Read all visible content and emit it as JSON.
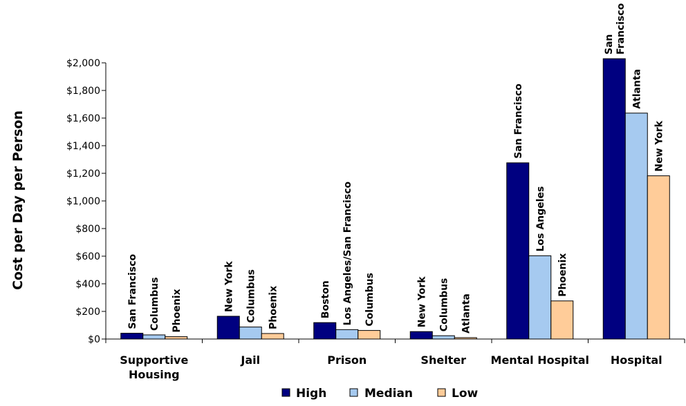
{
  "chart_data": {
    "type": "bar",
    "title": "",
    "xlabel": "",
    "ylabel": "Cost per Day per Person",
    "ylim": [
      0,
      2000
    ],
    "yticks": [
      "$0",
      "$200",
      "$400",
      "$600",
      "$800",
      "$1,000",
      "$1,200",
      "$1,400",
      "$1,600",
      "$1,800",
      "$2,000"
    ],
    "grid": false,
    "legend_position": "bottom",
    "categories": [
      [
        "Supportive",
        "Housing"
      ],
      [
        "Jail"
      ],
      [
        "Prison"
      ],
      [
        "Shelter"
      ],
      [
        "Mental Hospital"
      ],
      [
        "Hospital"
      ]
    ],
    "series": [
      {
        "name": "High",
        "color": "#000080",
        "values": [
          42,
          165,
          119,
          54,
          1276,
          2030
        ],
        "labels": [
          [
            "San Francisco"
          ],
          [
            "New York"
          ],
          [
            "Boston"
          ],
          [
            "New York"
          ],
          [
            "San Francisco"
          ],
          [
            "San",
            "Francisco"
          ]
        ]
      },
      {
        "name": "Median",
        "color": "#a6caf0",
        "values": [
          30,
          87,
          68,
          24,
          603,
          1636
        ],
        "labels": [
          [
            "Columbus"
          ],
          [
            "Columbus"
          ],
          [
            "Los Angeles/San Francisco"
          ],
          [
            "Columbus"
          ],
          [
            "Los Angeles"
          ],
          [
            "Atlanta"
          ]
        ]
      },
      {
        "name": "Low",
        "color": "#ffcc99",
        "values": [
          17,
          40,
          62,
          10,
          276,
          1182
        ],
        "labels": [
          [
            "Phoenix"
          ],
          [
            "Phoenix"
          ],
          [
            "Columbus"
          ],
          [
            "Atlanta"
          ],
          [
            "Phoenix"
          ],
          [
            "New York"
          ]
        ]
      }
    ]
  }
}
